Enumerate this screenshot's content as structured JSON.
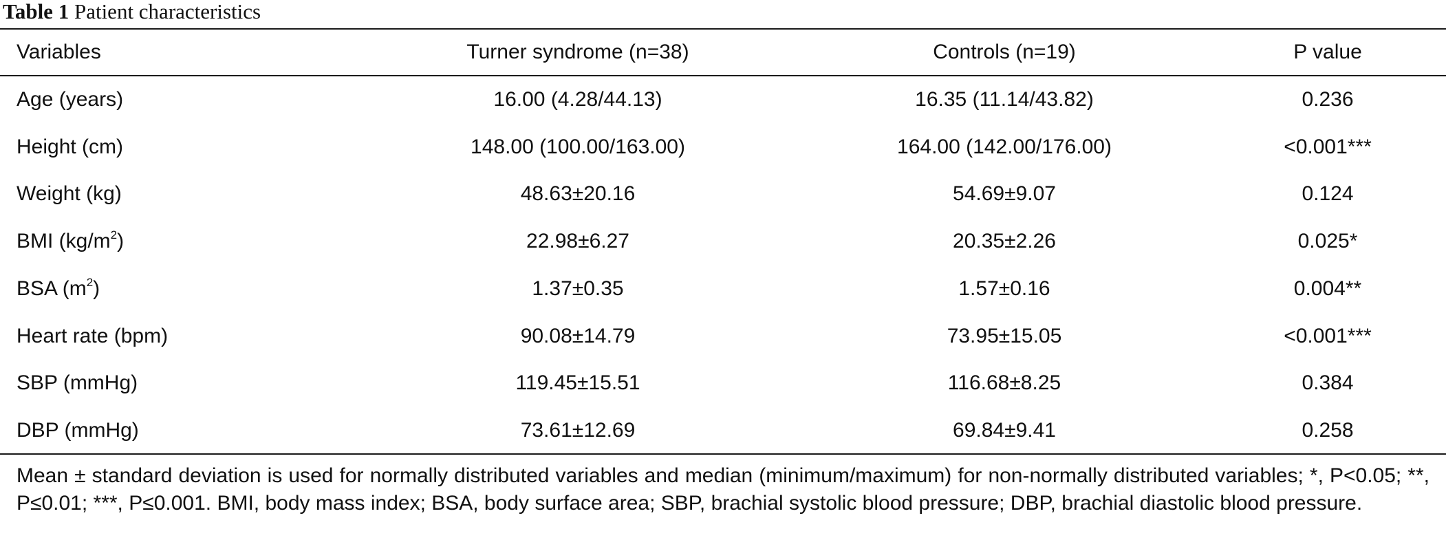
{
  "caption": {
    "label": "Table 1",
    "title": "Patient characteristics"
  },
  "table": {
    "headers": [
      "Variables",
      "Turner syndrome (n=38)",
      "Controls (n=19)",
      "P value"
    ],
    "rows": [
      {
        "variable": "Age (years)",
        "variable_sup": "",
        "variable_suffix": "",
        "turner": "16.00 (4.28/44.13)",
        "controls": "16.35 (11.14/43.82)",
        "p": "0.236"
      },
      {
        "variable": "Height (cm)",
        "variable_sup": "",
        "variable_suffix": "",
        "turner": "148.00 (100.00/163.00)",
        "controls": "164.00 (142.00/176.00)",
        "p": "<0.001***"
      },
      {
        "variable": "Weight (kg)",
        "variable_sup": "",
        "variable_suffix": "",
        "turner": "48.63±20.16",
        "controls": "54.69±9.07",
        "p": "0.124"
      },
      {
        "variable": "BMI (kg/m",
        "variable_sup": "2",
        "variable_suffix": ")",
        "turner": "22.98±6.27",
        "controls": "20.35±2.26",
        "p": "0.025*"
      },
      {
        "variable": "BSA (m",
        "variable_sup": "2",
        "variable_suffix": ")",
        "turner": "1.37±0.35",
        "controls": "1.57±0.16",
        "p": "0.004**"
      },
      {
        "variable": "Heart rate (bpm)",
        "variable_sup": "",
        "variable_suffix": "",
        "turner": "90.08±14.79",
        "controls": "73.95±15.05",
        "p": "<0.001***"
      },
      {
        "variable": "SBP (mmHg)",
        "variable_sup": "",
        "variable_suffix": "",
        "turner": "119.45±15.51",
        "controls": "116.68±8.25",
        "p": "0.384"
      },
      {
        "variable": "DBP (mmHg)",
        "variable_sup": "",
        "variable_suffix": "",
        "turner": "73.61±12.69",
        "controls": "69.84±9.41",
        "p": "0.258"
      }
    ]
  },
  "footnote": "Mean ± standard deviation is used for normally distributed variables and median (minimum/maximum) for non-normally distributed variables; *, P<0.05; **, P≤0.01; ***, P≤0.001. BMI, body mass index; BSA, body surface area; SBP, brachial systolic blood pressure; DBP, brachial diastolic blood pressure."
}
